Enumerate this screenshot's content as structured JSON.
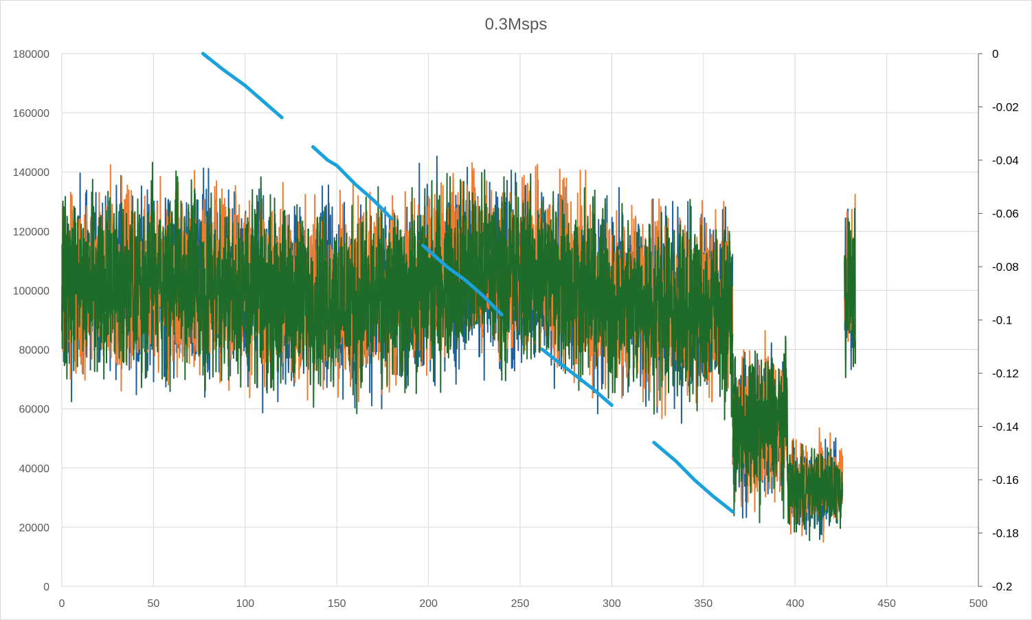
{
  "chart_data": {
    "type": "line",
    "title": "0.3Msps",
    "xlabel": "",
    "ylabel": "",
    "y2label": "",
    "x_ticks": [
      "0",
      "50",
      "100",
      "150",
      "200",
      "250",
      "300",
      "350",
      "400",
      "450",
      "500"
    ],
    "y_ticks": [
      "0",
      "20000",
      "40000",
      "60000",
      "80000",
      "100000",
      "120000",
      "140000",
      "160000",
      "180000"
    ],
    "y2_ticks": [
      "0",
      "-0.02",
      "-0.04",
      "-0.06",
      "-0.08",
      "-0.1",
      "-0.12",
      "-0.14",
      "-0.16",
      "-0.18",
      "-0.2"
    ],
    "xlim": [
      0,
      500
    ],
    "ylim": [
      0,
      180000
    ],
    "y2lim": [
      -0.2,
      0
    ],
    "grid": true,
    "colors": {
      "series_blue": "#1f5f9a",
      "series_orange": "#ed7d31",
      "series_green": "#1e6b2a",
      "secondary_line": "#1ba1dc",
      "grid": "#d9d9d9",
      "text": "#595959"
    },
    "series": [
      {
        "axis": "primary",
        "color": "#1f5f9a",
        "segments": [
          {
            "x_start": 0,
            "x_end": 366,
            "mean": [
              [
                0,
                102000
              ],
              [
                60,
                104000
              ],
              [
                120,
                98000
              ],
              [
                180,
                97000
              ],
              [
                220,
                107000
              ],
              [
                270,
                105000
              ],
              [
                300,
                96000
              ],
              [
                366,
                93000
              ]
            ],
            "amplitude": 38000
          },
          {
            "x_start": 366,
            "x_end": 396,
            "mean": [
              [
                366,
                52000
              ],
              [
                396,
                56000
              ]
            ],
            "amplitude": 30000
          },
          {
            "x_start": 396,
            "x_end": 426,
            "mean": [
              [
                396,
                33000
              ],
              [
                426,
                33000
              ]
            ],
            "amplitude": 18000
          },
          {
            "x_start": 427,
            "x_end": 433,
            "mean": [
              [
                427,
                100000
              ],
              [
                433,
                100000
              ]
            ],
            "amplitude": 30000
          }
        ]
      },
      {
        "axis": "primary",
        "color": "#ed7d31",
        "segments": [
          {
            "x_start": 0,
            "x_end": 366,
            "mean": [
              [
                0,
                103000
              ],
              [
                60,
                105000
              ],
              [
                120,
                99000
              ],
              [
                180,
                98000
              ],
              [
                220,
                108000
              ],
              [
                270,
                106000
              ],
              [
                300,
                97000
              ],
              [
                366,
                94000
              ]
            ],
            "amplitude": 38000
          },
          {
            "x_start": 366,
            "x_end": 396,
            "mean": [
              [
                366,
                53000
              ],
              [
                396,
                57000
              ]
            ],
            "amplitude": 30000
          },
          {
            "x_start": 396,
            "x_end": 426,
            "mean": [
              [
                396,
                34000
              ],
              [
                426,
                34000
              ]
            ],
            "amplitude": 18000
          },
          {
            "x_start": 427,
            "x_end": 433,
            "mean": [
              [
                427,
                101000
              ],
              [
                433,
                101000
              ]
            ],
            "amplitude": 30000
          }
        ]
      },
      {
        "axis": "primary",
        "color": "#1e6b2a",
        "segments": [
          {
            "x_start": 0,
            "x_end": 366,
            "mean": [
              [
                0,
                102000
              ],
              [
                60,
                104000
              ],
              [
                120,
                98000
              ],
              [
                180,
                97000
              ],
              [
                220,
                107000
              ],
              [
                270,
                105000
              ],
              [
                300,
                96000
              ],
              [
                366,
                93000
              ]
            ],
            "amplitude": 37000
          },
          {
            "x_start": 366,
            "x_end": 396,
            "mean": [
              [
                366,
                52000
              ],
              [
                396,
                56000
              ]
            ],
            "amplitude": 30000
          },
          {
            "x_start": 396,
            "x_end": 426,
            "mean": [
              [
                396,
                33000
              ],
              [
                426,
                33000
              ]
            ],
            "amplitude": 17000
          },
          {
            "x_start": 427,
            "x_end": 433,
            "mean": [
              [
                427,
                100000
              ],
              [
                433,
                100000
              ]
            ],
            "amplitude": 30000
          }
        ]
      },
      {
        "axis": "secondary",
        "color": "#1ba1dc",
        "segments": [
          [
            [
              77,
              0
            ],
            [
              88,
              -0.006
            ],
            [
              100,
              -0.012
            ],
            [
              110,
              -0.018
            ],
            [
              120,
              -0.024
            ]
          ],
          [
            [
              137,
              -0.035
            ],
            [
              145,
              -0.04
            ],
            [
              150,
              -0.042
            ],
            [
              160,
              -0.049
            ],
            [
              170,
              -0.055
            ],
            [
              180,
              -0.062
            ]
          ],
          [
            [
              197,
              -0.072
            ],
            [
              210,
              -0.08
            ],
            [
              220,
              -0.085
            ],
            [
              230,
              -0.091
            ],
            [
              240,
              -0.098
            ]
          ],
          [
            [
              262,
              -0.111
            ],
            [
              275,
              -0.118
            ],
            [
              290,
              -0.126
            ],
            [
              300,
              -0.132
            ]
          ],
          [
            [
              323,
              -0.146
            ],
            [
              335,
              -0.153
            ],
            [
              345,
              -0.16
            ],
            [
              355,
              -0.166
            ],
            [
              366,
              -0.172
            ]
          ]
        ]
      }
    ]
  }
}
